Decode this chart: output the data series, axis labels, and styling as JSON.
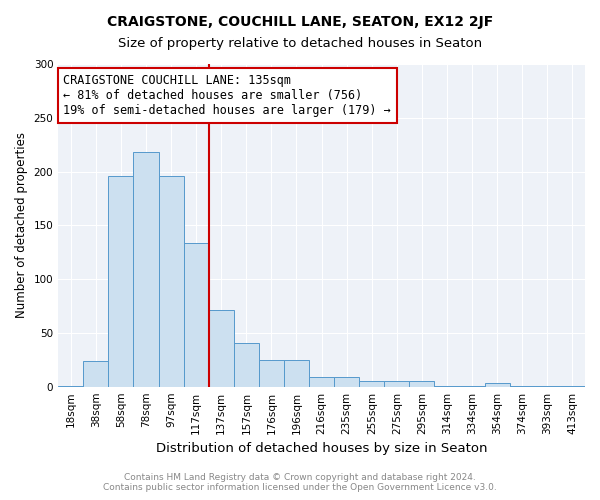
{
  "title": "CRAIGSTONE, COUCHILL LANE, SEATON, EX12 2JF",
  "subtitle": "Size of property relative to detached houses in Seaton",
  "xlabel": "Distribution of detached houses by size in Seaton",
  "ylabel": "Number of detached properties",
  "categories": [
    "18sqm",
    "38sqm",
    "58sqm",
    "78sqm",
    "97sqm",
    "117sqm",
    "137sqm",
    "157sqm",
    "176sqm",
    "196sqm",
    "216sqm",
    "235sqm",
    "255sqm",
    "275sqm",
    "295sqm",
    "314sqm",
    "334sqm",
    "354sqm",
    "374sqm",
    "393sqm",
    "413sqm"
  ],
  "values": [
    1,
    24,
    196,
    218,
    196,
    134,
    71,
    41,
    25,
    25,
    9,
    9,
    5,
    5,
    5,
    1,
    1,
    3,
    1,
    1,
    1
  ],
  "bar_color": "#cce0f0",
  "bar_edge_color": "#5599cc",
  "vline_color": "#cc0000",
  "vline_x": 5.5,
  "annotation_title": "CRAIGSTONE COUCHILL LANE: 135sqm",
  "annotation_line1": "← 81% of detached houses are smaller (756)",
  "annotation_line2": "19% of semi-detached houses are larger (179) →",
  "annotation_box_color": "#cc0000",
  "ylim": [
    0,
    300
  ],
  "yticks": [
    0,
    50,
    100,
    150,
    200,
    250,
    300
  ],
  "plot_bg_color": "#eef2f8",
  "footer_line1": "Contains HM Land Registry data © Crown copyright and database right 2024.",
  "footer_line2": "Contains public sector information licensed under the Open Government Licence v3.0.",
  "title_fontsize": 10,
  "subtitle_fontsize": 9.5,
  "xlabel_fontsize": 9.5,
  "ylabel_fontsize": 8.5,
  "tick_fontsize": 7.5,
  "footer_fontsize": 6.5,
  "annotation_fontsize": 8.5
}
